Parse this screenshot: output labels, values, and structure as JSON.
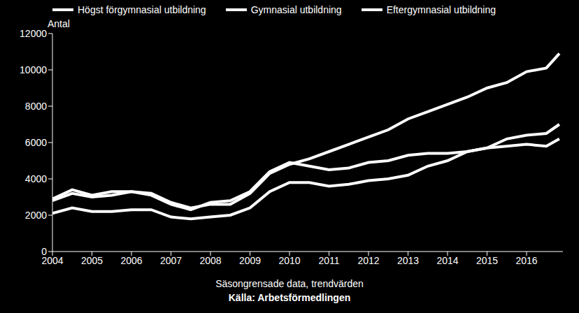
{
  "chart_data": {
    "type": "line",
    "y_label": "Antal",
    "x_label": "Säsongrensade data, trendvärden",
    "annotations": [
      "Källa: Arbetsförmedlingen"
    ],
    "x": [
      2004,
      2004.5,
      2005,
      2005.5,
      2006,
      2006.5,
      2007,
      2007.5,
      2008,
      2008.5,
      2009,
      2009.5,
      2010,
      2010.5,
      2011,
      2011.5,
      2012,
      2012.5,
      2013,
      2013.5,
      2014,
      2014.5,
      2015,
      2015.5,
      2016,
      2016.5,
      2016.83
    ],
    "series": [
      {
        "name": "Högst förgymnasial utbildning",
        "color": "#ffffff",
        "values": [
          2900,
          3400,
          3100,
          3300,
          3300,
          3200,
          2700,
          2400,
          2600,
          2600,
          3200,
          4300,
          4800,
          5100,
          5500,
          5900,
          6300,
          6700,
          7300,
          7700,
          8100,
          8500,
          9000,
          9300,
          9900,
          10100,
          10900
        ]
      },
      {
        "name": "Gymnasial utbildning",
        "color": "#ffffff",
        "values": [
          2800,
          3200,
          3000,
          3100,
          3300,
          3100,
          2600,
          2300,
          2700,
          2800,
          3300,
          4400,
          4900,
          4700,
          4500,
          4600,
          4900,
          5000,
          5300,
          5400,
          5400,
          5500,
          5700,
          6200,
          6400,
          6500,
          7000
        ]
      },
      {
        "name": "Eftergymnasial utbildning",
        "color": "#ffffff",
        "values": [
          2100,
          2400,
          2200,
          2200,
          2300,
          2300,
          1900,
          1800,
          1900,
          2000,
          2400,
          3300,
          3800,
          3800,
          3600,
          3700,
          3900,
          4000,
          4200,
          4700,
          5000,
          5500,
          5700,
          5800,
          5900,
          5800,
          6200
        ]
      }
    ],
    "xlim": [
      2004,
      2016.92
    ],
    "xticks": [
      2004,
      2005,
      2006,
      2007,
      2008,
      2009,
      2010,
      2011,
      2012,
      2013,
      2014,
      2015,
      2016
    ],
    "ylim": [
      0,
      12000
    ],
    "yticks": [
      0,
      2000,
      4000,
      6000,
      8000,
      10000,
      12000
    ],
    "grid": false,
    "legend": "top"
  }
}
